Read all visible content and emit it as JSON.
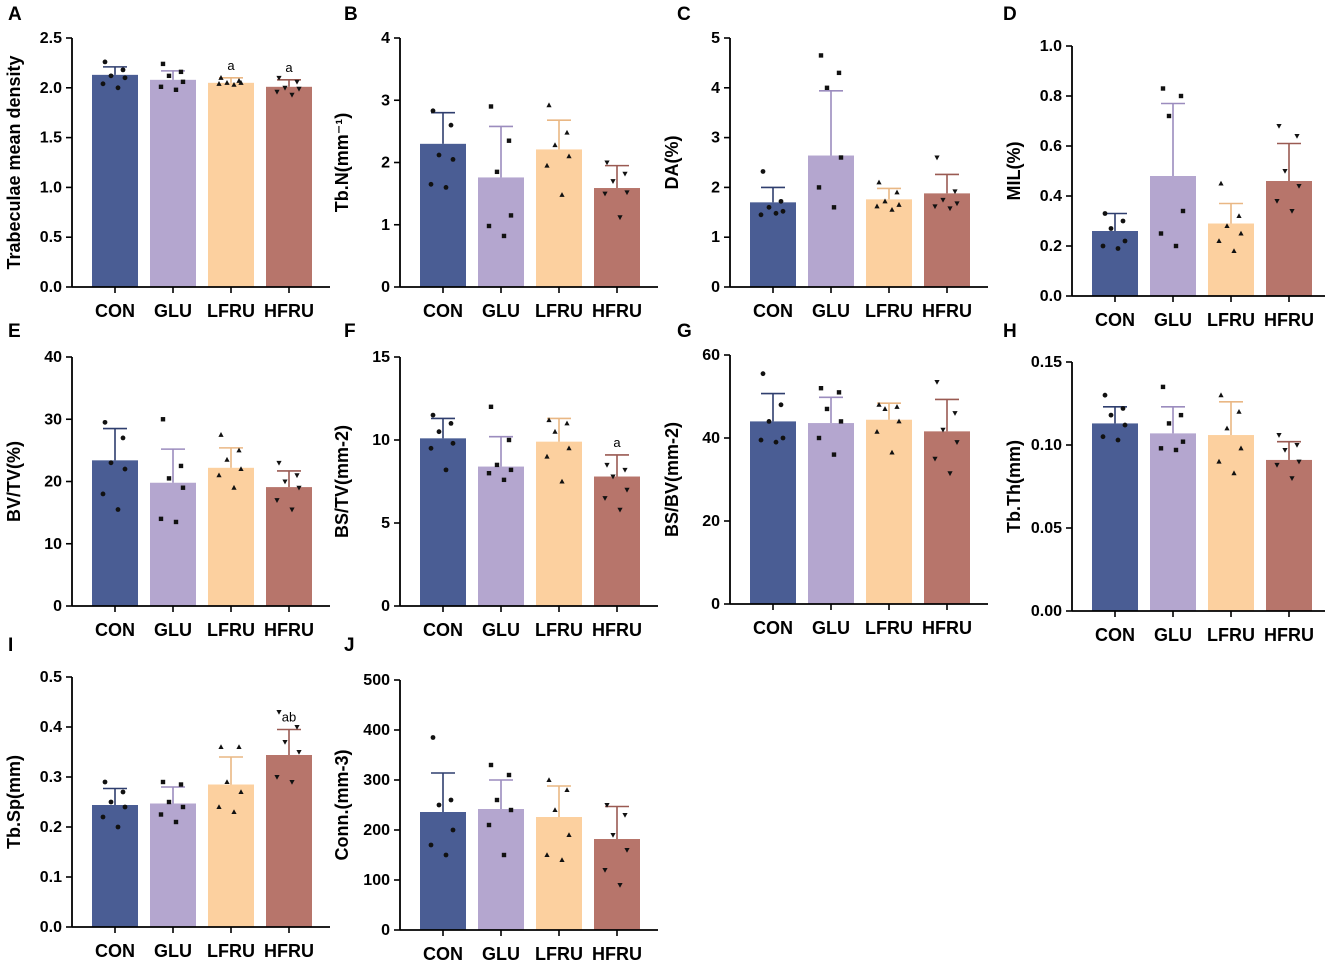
{
  "chart_data": [
    {
      "type": "bar",
      "panel": "A",
      "ylabel": "Trabeculae mean density",
      "categories": [
        "CON",
        "GLU",
        "LFRU",
        "HFRU"
      ],
      "values": [
        2.13,
        2.08,
        2.05,
        2.01
      ],
      "errors": [
        0.08,
        0.09,
        0.05,
        0.07
      ],
      "ylim": [
        0,
        2.5
      ],
      "yticks": [
        "0.0",
        "0.5",
        "1.0",
        "1.5",
        "2.0",
        "2.5"
      ],
      "annotations": [
        "",
        "",
        "a",
        "a"
      ],
      "points": [
        [
          2.26,
          2.18,
          2.12,
          2.1,
          2.04,
          2.0
        ],
        [
          2.24,
          2.16,
          2.12,
          2.06,
          2.01,
          1.98
        ],
        [
          2.1,
          2.07,
          2.05,
          2.05,
          2.04,
          2.03
        ],
        [
          2.1,
          2.06,
          2.0,
          1.99,
          1.96,
          1.93
        ]
      ]
    },
    {
      "type": "bar",
      "panel": "B",
      "ylabel": "Tb.N(mm⁻¹)",
      "categories": [
        "CON",
        "GLU",
        "LFRU",
        "HFRU"
      ],
      "values": [
        2.3,
        1.76,
        2.21,
        1.59
      ],
      "errors": [
        0.5,
        0.82,
        0.47,
        0.36
      ],
      "ylim": [
        0,
        4
      ],
      "yticks": [
        "0",
        "1",
        "2",
        "3",
        "4"
      ],
      "annotations": [
        "",
        "",
        "",
        ""
      ],
      "points": [
        [
          2.83,
          2.6,
          2.12,
          2.05,
          1.65,
          1.6
        ],
        [
          2.9,
          2.35,
          1.85,
          1.15,
          0.98,
          0.82
        ],
        [
          2.92,
          2.48,
          2.28,
          2.1,
          1.95,
          1.48
        ],
        [
          2.0,
          1.82,
          1.7,
          1.52,
          1.5,
          1.12
        ]
      ]
    },
    {
      "type": "bar",
      "panel": "C",
      "ylabel": "DA(%)",
      "categories": [
        "CON",
        "GLU",
        "LFRU",
        "HFRU"
      ],
      "values": [
        1.7,
        2.64,
        1.76,
        1.88
      ],
      "errors": [
        0.3,
        1.3,
        0.22,
        0.38
      ],
      "ylim": [
        0,
        5
      ],
      "yticks": [
        "0",
        "1",
        "2",
        "3",
        "4",
        "5"
      ],
      "annotations": [
        "",
        "",
        "",
        ""
      ],
      "points": [
        [
          2.32,
          1.72,
          1.6,
          1.52,
          1.45,
          1.48
        ],
        [
          4.65,
          4.3,
          4.0,
          2.6,
          2.0,
          1.6
        ],
        [
          2.1,
          1.9,
          1.72,
          1.65,
          1.62,
          1.55
        ],
        [
          2.6,
          1.92,
          1.75,
          1.68,
          1.62,
          1.58
        ]
      ]
    },
    {
      "type": "bar",
      "panel": "D",
      "ylabel": "MIL(%)",
      "categories": [
        "CON",
        "GLU",
        "LFRU",
        "HFRU"
      ],
      "values": [
        0.26,
        0.48,
        0.29,
        0.46
      ],
      "errors": [
        0.07,
        0.29,
        0.08,
        0.15
      ],
      "ylim": [
        0,
        1.0
      ],
      "yticks": [
        "0.0",
        "0.2",
        "0.4",
        "0.6",
        "0.8",
        "1.0"
      ],
      "annotations": [
        "",
        "",
        "",
        ""
      ],
      "points": [
        [
          0.33,
          0.3,
          0.27,
          0.22,
          0.2,
          0.19
        ],
        [
          0.83,
          0.8,
          0.72,
          0.34,
          0.25,
          0.2
        ],
        [
          0.45,
          0.32,
          0.28,
          0.25,
          0.22,
          0.18
        ],
        [
          0.68,
          0.64,
          0.5,
          0.44,
          0.38,
          0.34
        ]
      ]
    },
    {
      "type": "bar",
      "panel": "E",
      "ylabel": "BV/TV(%)",
      "categories": [
        "CON",
        "GLU",
        "LFRU",
        "HFRU"
      ],
      "values": [
        23.4,
        19.8,
        22.2,
        19.1
      ],
      "errors": [
        5.1,
        5.4,
        3.2,
        2.6
      ],
      "ylim": [
        0,
        40
      ],
      "yticks": [
        "0",
        "10",
        "20",
        "30",
        "40"
      ],
      "annotations": [
        "",
        "",
        "",
        ""
      ],
      "points": [
        [
          29.5,
          27.0,
          23.0,
          22.0,
          18.0,
          15.5
        ],
        [
          30.0,
          22.5,
          20.5,
          19.0,
          14.0,
          13.5
        ],
        [
          27.5,
          25.0,
          23.5,
          22.0,
          21.0,
          19.0
        ],
        [
          23.0,
          21.0,
          20.0,
          19.0,
          17.0,
          15.5
        ]
      ]
    },
    {
      "type": "bar",
      "panel": "F",
      "ylabel": "BS/TV(mm-2)",
      "categories": [
        "CON",
        "GLU",
        "LFRU",
        "HFRU"
      ],
      "values": [
        10.1,
        8.4,
        9.9,
        7.8
      ],
      "errors": [
        1.2,
        1.8,
        1.4,
        1.3
      ],
      "ylim": [
        0,
        15
      ],
      "yticks": [
        "0",
        "5",
        "10",
        "15"
      ],
      "annotations": [
        "",
        "",
        "",
        "a"
      ],
      "points": [
        [
          11.5,
          11.0,
          10.5,
          9.8,
          9.5,
          8.2
        ],
        [
          12.0,
          10.0,
          8.5,
          8.2,
          8.0,
          7.6
        ],
        [
          11.2,
          11.0,
          10.5,
          9.5,
          9.0,
          7.5
        ],
        [
          8.5,
          8.2,
          7.8,
          7.0,
          6.5,
          5.8
        ]
      ]
    },
    {
      "type": "bar",
      "panel": "G",
      "ylabel": "BS/BV(mm-2)",
      "categories": [
        "CON",
        "GLU",
        "LFRU",
        "HFRU"
      ],
      "values": [
        44.0,
        43.6,
        44.4,
        41.6
      ],
      "errors": [
        6.7,
        6.2,
        4.0,
        7.7
      ],
      "ylim": [
        0,
        60
      ],
      "yticks": [
        "0",
        "20",
        "40",
        "60"
      ],
      "annotations": [
        "",
        "",
        "",
        ""
      ],
      "points": [
        [
          55.5,
          48.0,
          44.0,
          40.0,
          39.5,
          39.0
        ],
        [
          52.0,
          51.0,
          47.0,
          44.0,
          40.0,
          36.0
        ],
        [
          48.0,
          47.5,
          47.0,
          44.0,
          41.5,
          36.5
        ],
        [
          53.5,
          46.0,
          42.0,
          39.0,
          35.0,
          31.5
        ]
      ]
    },
    {
      "type": "bar",
      "panel": "H",
      "ylabel": "Tb.Th(mm)",
      "categories": [
        "CON",
        "GLU",
        "LFRU",
        "HFRU"
      ],
      "values": [
        0.113,
        0.107,
        0.106,
        0.091
      ],
      "errors": [
        0.01,
        0.016,
        0.02,
        0.011
      ],
      "ylim": [
        0,
        0.15
      ],
      "yticks": [
        "0.00",
        "0.05",
        "0.10",
        "0.15"
      ],
      "annotations": [
        "",
        "",
        "",
        ""
      ],
      "points": [
        [
          0.13,
          0.122,
          0.118,
          0.112,
          0.105,
          0.103
        ],
        [
          0.135,
          0.118,
          0.113,
          0.102,
          0.098,
          0.097
        ],
        [
          0.13,
          0.12,
          0.11,
          0.098,
          0.09,
          0.083
        ],
        [
          0.106,
          0.1,
          0.097,
          0.09,
          0.088,
          0.08
        ]
      ]
    },
    {
      "type": "bar",
      "panel": "I",
      "ylabel": "Tb.Sp(mm)",
      "categories": [
        "CON",
        "GLU",
        "LFRU",
        "HFRU"
      ],
      "values": [
        0.244,
        0.247,
        0.285,
        0.344
      ],
      "errors": [
        0.033,
        0.033,
        0.055,
        0.051
      ],
      "ylim": [
        0,
        0.5
      ],
      "yticks": [
        "0.0",
        "0.1",
        "0.2",
        "0.3",
        "0.4",
        "0.5"
      ],
      "annotations": [
        "",
        "",
        "",
        "ab"
      ],
      "points": [
        [
          0.29,
          0.27,
          0.25,
          0.24,
          0.22,
          0.2
        ],
        [
          0.29,
          0.285,
          0.25,
          0.24,
          0.225,
          0.21
        ],
        [
          0.36,
          0.36,
          0.29,
          0.27,
          0.24,
          0.23
        ],
        [
          0.43,
          0.4,
          0.37,
          0.35,
          0.3,
          0.29
        ]
      ]
    },
    {
      "type": "bar",
      "panel": "J",
      "ylabel": "Conn.(mm-3)",
      "categories": [
        "CON",
        "GLU",
        "LFRU",
        "HFRU"
      ],
      "values": [
        236,
        242,
        226,
        182
      ],
      "errors": [
        78,
        58,
        62,
        65
      ],
      "ylim": [
        0,
        500
      ],
      "yticks": [
        "0",
        "100",
        "200",
        "300",
        "400",
        "500"
      ],
      "annotations": [
        "",
        "",
        "",
        ""
      ],
      "points": [
        [
          385,
          260,
          250,
          200,
          170,
          150
        ],
        [
          330,
          310,
          260,
          240,
          210,
          150
        ],
        [
          300,
          280,
          240,
          190,
          150,
          140
        ],
        [
          250,
          230,
          190,
          160,
          120,
          90
        ]
      ]
    }
  ],
  "colors": {
    "bars": [
      "#4a5d94",
      "#b4a6cf",
      "#fcd09f",
      "#b7756b"
    ],
    "error_bars": [
      "#2f3e6e",
      "#9b8cbe",
      "#e9b784",
      "#9a5a52"
    ],
    "points": "#111111",
    "axes": "#000000"
  }
}
